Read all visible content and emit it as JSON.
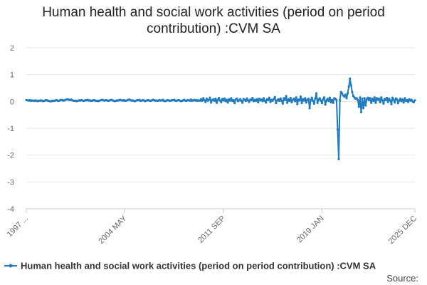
{
  "chart_data": {
    "type": "line",
    "title": "Human health and social work activities (period on period contribution) :CVM SA",
    "source": "Source:",
    "categories": [
      "1997 ...",
      null,
      null,
      null,
      null,
      null,
      null,
      null,
      null,
      null,
      null,
      null,
      null,
      null,
      null,
      null,
      null,
      null,
      null,
      null,
      null,
      null,
      null,
      null,
      null,
      null,
      null,
      null,
      null,
      null,
      null,
      null,
      null,
      null,
      null,
      null,
      null,
      null,
      null,
      null,
      null,
      null,
      null,
      null,
      null,
      null,
      null,
      null,
      null,
      null,
      null,
      null,
      null,
      null,
      null,
      null,
      null,
      null,
      null,
      null,
      null,
      null,
      null,
      null,
      null,
      null,
      null,
      null,
      null,
      null,
      null,
      null,
      null,
      null,
      null,
      null,
      null,
      null,
      null,
      null,
      null,
      null,
      null,
      null,
      null,
      null,
      null,
      null,
      "2004 MAY",
      null,
      null,
      null,
      null,
      null,
      null,
      null,
      null,
      null,
      null,
      null,
      null,
      null,
      null,
      null,
      null,
      null,
      null,
      null,
      null,
      null,
      null,
      null,
      null,
      null,
      null,
      null,
      null,
      null,
      null,
      null,
      null,
      null,
      null,
      null,
      null,
      null,
      null,
      null,
      null,
      null,
      null,
      null,
      null,
      null,
      null,
      null,
      null,
      null,
      null,
      null,
      null,
      null,
      null,
      null,
      null,
      null,
      null,
      null,
      null,
      null,
      null,
      null,
      null,
      null,
      null,
      null,
      null,
      null,
      null,
      null,
      null,
      null,
      null,
      null,
      null,
      null,
      null,
      null,
      null,
      null,
      null,
      null,
      null,
      null,
      null,
      null,
      "2011 SEP",
      null,
      null,
      null,
      null,
      null,
      null,
      null,
      null,
      null,
      null,
      null,
      null,
      null,
      null,
      null,
      null,
      null,
      null,
      null,
      null,
      null,
      null,
      null,
      null,
      null,
      null,
      null,
      null,
      null,
      null,
      null,
      null,
      null,
      null,
      null,
      null,
      null,
      null,
      null,
      null,
      null,
      null,
      null,
      null,
      null,
      null,
      null,
      null,
      null,
      null,
      null,
      null,
      null,
      null,
      null,
      null,
      null,
      null,
      null,
      null,
      null,
      null,
      null,
      null,
      null,
      null,
      null,
      null,
      null,
      null,
      null,
      null,
      null,
      null,
      null,
      null,
      null,
      null,
      null,
      null,
      null,
      null,
      null,
      null,
      null,
      null,
      null,
      "2019 JAN",
      null,
      null,
      null,
      null,
      null,
      null,
      null,
      null,
      null,
      null,
      null,
      null,
      null,
      null,
      null,
      null,
      null,
      null,
      null,
      null,
      null,
      null,
      null,
      null,
      null,
      null,
      null,
      null,
      null,
      null,
      null,
      null,
      null,
      null,
      null,
      null,
      null,
      null,
      null,
      null,
      null,
      null,
      null,
      null,
      null,
      null,
      null,
      null,
      null,
      null,
      null,
      null,
      null,
      null,
      null,
      null,
      null,
      null,
      null,
      null,
      null,
      null,
      null,
      null,
      null,
      null,
      null,
      null,
      null,
      null,
      null,
      null,
      null,
      null,
      null,
      null,
      null,
      null,
      null,
      null,
      null,
      null,
      "2025 DEC"
    ],
    "series": [
      {
        "name": "Human health and social work activities (period on period contribution) :CVM SA",
        "color": "#1f7bbf",
        "values": [
          0.05,
          0.04,
          0.03,
          0.05,
          0.02,
          0.04,
          0.03,
          0.02,
          0.04,
          0.03,
          0.01,
          0.03,
          0.02,
          0.04,
          0.03,
          0.01,
          0.02,
          0.04,
          0.05,
          0.03,
          0.02,
          0.01,
          0.0,
          0.02,
          0.03,
          0.02,
          0.04,
          0.05,
          0.03,
          0.02,
          0.04,
          0.06,
          0.05,
          0.03,
          0.04,
          0.06,
          0.07,
          0.08,
          0.06,
          0.05,
          0.07,
          0.04,
          0.03,
          0.02,
          0.03,
          0.01,
          0.02,
          0.04,
          0.03,
          0.05,
          0.04,
          0.02,
          0.03,
          0.05,
          0.04,
          0.06,
          0.03,
          0.04,
          0.02,
          0.03,
          0.05,
          0.04,
          0.02,
          0.03,
          0.01,
          0.02,
          0.04,
          0.05,
          0.06,
          0.04,
          0.03,
          0.05,
          0.04,
          0.02,
          0.03,
          0.05,
          0.06,
          0.04,
          0.03,
          0.01,
          0.02,
          0.04,
          0.03,
          0.05,
          0.06,
          0.04,
          0.03,
          0.05,
          0.02,
          0.03,
          0.04,
          0.06,
          0.07,
          0.05,
          0.03,
          0.04,
          0.02,
          0.01,
          0.03,
          0.05,
          0.04,
          0.06,
          0.02,
          0.03,
          0.05,
          0.04,
          0.01,
          0.03,
          0.04,
          0.05,
          0.03,
          0.02,
          0.04,
          0.06,
          0.05,
          0.03,
          0.04,
          0.02,
          0.03,
          0.05,
          0.03,
          0.04,
          0.06,
          0.02,
          0.01,
          0.03,
          0.05,
          0.04,
          0.02,
          0.03,
          0.05,
          0.04,
          0.06,
          0.03,
          0.02,
          0.04,
          0.05,
          0.03,
          0.01,
          0.02,
          0.04,
          0.06,
          0.03,
          0.02,
          0.05,
          0.04,
          0.03,
          0.07,
          0.02,
          0.04,
          0.06,
          0.03,
          0.05,
          0.02,
          0.04,
          0.03,
          0.08,
          0.02,
          0.12,
          0.05,
          -0.02,
          0.1,
          0.03,
          0.06,
          0.14,
          -0.04,
          0.05,
          0.08,
          0.02,
          0.1,
          -0.05,
          0.06,
          0.13,
          0.03,
          -0.03,
          0.09,
          0.04,
          0.11,
          0.01,
          0.06,
          -0.04,
          0.08,
          0.03,
          0.12,
          0.02,
          0.05,
          -0.06,
          0.07,
          0.1,
          0.01,
          0.04,
          0.08,
          0.03,
          -0.05,
          0.09,
          0.06,
          0.02,
          0.11,
          0.04,
          -0.02,
          0.07,
          0.05,
          0.13,
          0.01,
          0.06,
          0.02,
          0.08,
          -0.03,
          0.1,
          0.04,
          0.07,
          0.01,
          0.12,
          0.03,
          -0.04,
          0.08,
          0.05,
          0.14,
          -0.02,
          0.06,
          0.03,
          0.09,
          0.16,
          -0.06,
          0.04,
          0.08,
          0.02,
          0.11,
          0.03,
          -0.08,
          0.12,
          0.05,
          0.2,
          -0.05,
          0.08,
          0.02,
          0.13,
          -0.03,
          0.06,
          0.1,
          0.01,
          0.15,
          -0.1,
          0.07,
          0.04,
          0.18,
          -0.06,
          0.09,
          0.03,
          0.12,
          -0.04,
          0.06,
          0.1,
          -0.25,
          0.05,
          0.14,
          0.02,
          -0.08,
          0.11,
          0.3,
          -0.05,
          0.07,
          0.12,
          0.03,
          -0.06,
          0.08,
          0.15,
          -0.12,
          0.04,
          0.1,
          0.02,
          0.14,
          -0.03,
          0.06,
          -0.05,
          0.12,
          0.1,
          0.05,
          -1.05,
          -2.15,
          0.05,
          0.35,
          0.3,
          0.22,
          0.18,
          0.25,
          0.12,
          0.3,
          0.55,
          0.85,
          0.6,
          0.35,
          0.2,
          0.15,
          0.1,
          0.12,
          0.05,
          -0.2,
          0.15,
          -0.4,
          0.1,
          -0.25,
          0.12,
          -0.15,
          0.08,
          0.14,
          0.05,
          0.12,
          -0.05,
          0.1,
          0.02,
          0.15,
          -0.05,
          0.12,
          0.06,
          0.1,
          -0.03,
          0.15,
          0.04,
          -0.08,
          0.09,
          0.05,
          0.13,
          -0.02,
          0.1,
          0.04,
          -0.1,
          0.14,
          0.06,
          -0.04,
          0.11,
          0.08,
          -0.06,
          0.03,
          0.1,
          0.01,
          0.07,
          -0.04,
          0.12,
          0.02,
          0.05,
          -0.02,
          0.08,
          0.03,
          0.06,
          0.0,
          -0.03,
          0.04
        ]
      }
    ],
    "ylim": [
      -4,
      2
    ],
    "yticks": [
      -4,
      -3,
      -2,
      -1,
      0,
      1,
      2
    ],
    "grid": true
  }
}
